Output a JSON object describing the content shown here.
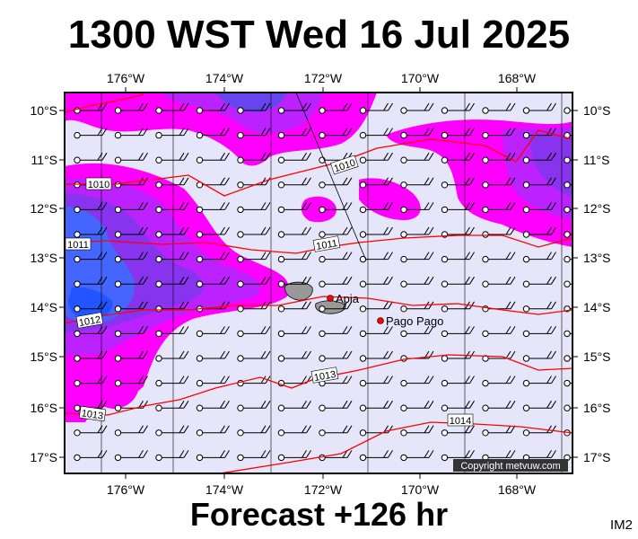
{
  "title": "1300 WST Wed 16 Jul 2025",
  "subtitle": "Forecast +126 hr",
  "code": "IM2",
  "copyright": "Copyright metvuw.com",
  "lon_labels": [
    "176°W",
    "174°W",
    "172°W",
    "170°W",
    "168°W"
  ],
  "lat_labels": [
    "10°S",
    "11°S",
    "12°S",
    "13°S",
    "14°S",
    "15°S",
    "16°S",
    "17°S"
  ],
  "isobars": [
    {
      "label": "1010"
    },
    {
      "label": "1010"
    },
    {
      "label": "1011"
    },
    {
      "label": "1011"
    },
    {
      "label": "1012"
    },
    {
      "label": "1013"
    },
    {
      "label": "1013"
    },
    {
      "label": "1014"
    }
  ],
  "places": [
    {
      "name": "Apia"
    },
    {
      "name": "Pago Pago"
    }
  ],
  "colors": {
    "background": "#e6e6fa",
    "rain_light": "#ff00ff",
    "rain_medium": "#bb22ff",
    "rain_heavy": "#6622ee",
    "rain_extreme": "#3355ff",
    "isobar": "#ff0000",
    "land": "#999999"
  }
}
